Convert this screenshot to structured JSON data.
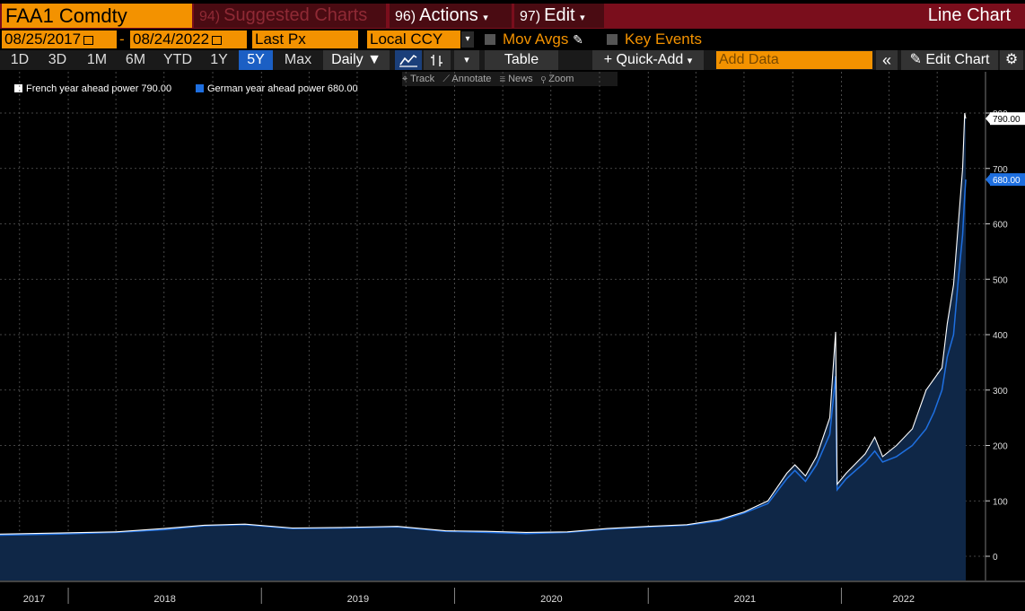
{
  "toolbar": {
    "ticker": "FAA1 Comdty",
    "suggested_num": "94)",
    "suggested_label": "Suggested Charts",
    "actions_num": "96)",
    "actions_label": "Actions",
    "edit_num": "97)",
    "edit_label": "Edit",
    "chart_type": "Line Chart"
  },
  "settings": {
    "start_date": "08/25/2017",
    "date_sep": "-",
    "end_date": "08/24/2022",
    "field": "Last Px",
    "currency": "Local CCY",
    "mov_avgs": "Mov Avgs",
    "key_events": "Key Events"
  },
  "ranges": {
    "items": [
      "1D",
      "3D",
      "1M",
      "6M",
      "YTD",
      "1Y",
      "5Y",
      "Max"
    ],
    "active": "5Y",
    "frequency": "Daily",
    "table": "Table",
    "quick_add": "+ Quick-Add",
    "add_data_placeholder": "Add Data",
    "collapse": "«",
    "edit_chart": "Edit Chart"
  },
  "tools": {
    "track": "Track",
    "annotate": "Annotate",
    "news": "News",
    "zoom": "Zoom"
  },
  "colors": {
    "french": "#ffffff",
    "german": "#1e6fe0",
    "area": "#0f2747",
    "highlight": "#f39200",
    "bar": "#7a0e1c"
  },
  "chart_data": {
    "type": "line",
    "legend_position": "top-left",
    "grid": true,
    "ylim": [
      -25,
      815
    ],
    "y_ticks": [
      "0",
      "100",
      "200",
      "300",
      "400",
      "500",
      "600",
      "700",
      "800"
    ],
    "x_labels": [
      "2017",
      "2018",
      "2019",
      "2020",
      "2021",
      "2022"
    ],
    "last_value_labels": [
      "790.00",
      "680.00"
    ],
    "series": [
      {
        "name": "French year ahead power",
        "last": "790.00",
        "x": [
          "2017-08-25",
          "2017-12-15",
          "2018-04-01",
          "2018-07-01",
          "2018-09-15",
          "2018-12-01",
          "2019-03-01",
          "2019-06-01",
          "2019-09-15",
          "2019-12-15",
          "2020-03-01",
          "2020-05-15",
          "2020-08-01",
          "2020-10-15",
          "2021-01-01",
          "2021-03-15",
          "2021-05-15",
          "2021-07-01",
          "2021-08-15",
          "2021-09-20",
          "2021-10-05",
          "2021-10-25",
          "2021-11-15",
          "2021-12-10",
          "2021-12-21",
          "2021-12-24",
          "2022-01-10",
          "2022-02-15",
          "2022-03-05",
          "2022-03-20",
          "2022-04-15",
          "2022-05-15",
          "2022-06-10",
          "2022-06-25",
          "2022-07-10",
          "2022-07-20",
          "2022-08-01",
          "2022-08-10",
          "2022-08-18",
          "2022-08-22",
          "2022-08-24"
        ],
        "values": [
          40,
          42,
          44,
          50,
          56,
          58,
          51,
          52,
          54,
          46,
          45,
          43,
          44,
          50,
          54,
          57,
          66,
          80,
          100,
          150,
          165,
          145,
          180,
          250,
          405,
          130,
          150,
          185,
          215,
          180,
          200,
          230,
          300,
          320,
          340,
          420,
          490,
          600,
          700,
          800,
          790
        ]
      },
      {
        "name": "German year ahead power",
        "last": "680.00",
        "x": [
          "2017-08-25",
          "2017-12-15",
          "2018-04-01",
          "2018-07-01",
          "2018-09-15",
          "2018-12-01",
          "2019-03-01",
          "2019-06-01",
          "2019-09-15",
          "2019-12-15",
          "2020-03-01",
          "2020-05-15",
          "2020-08-01",
          "2020-10-15",
          "2021-01-01",
          "2021-03-15",
          "2021-05-15",
          "2021-07-01",
          "2021-08-15",
          "2021-09-20",
          "2021-10-05",
          "2021-10-25",
          "2021-11-15",
          "2021-12-10",
          "2021-12-21",
          "2021-12-24",
          "2022-01-10",
          "2022-02-15",
          "2022-03-05",
          "2022-03-20",
          "2022-04-15",
          "2022-05-15",
          "2022-06-10",
          "2022-06-25",
          "2022-07-10",
          "2022-07-20",
          "2022-08-01",
          "2022-08-10",
          "2022-08-18",
          "2022-08-22",
          "2022-08-24"
        ],
        "values": [
          38,
          40,
          43,
          48,
          55,
          57,
          50,
          51,
          53,
          45,
          43,
          41,
          43,
          49,
          53,
          56,
          64,
          78,
          95,
          140,
          155,
          135,
          165,
          220,
          325,
          120,
          140,
          170,
          190,
          170,
          180,
          200,
          230,
          260,
          300,
          360,
          400,
          500,
          580,
          650,
          680
        ]
      }
    ]
  }
}
